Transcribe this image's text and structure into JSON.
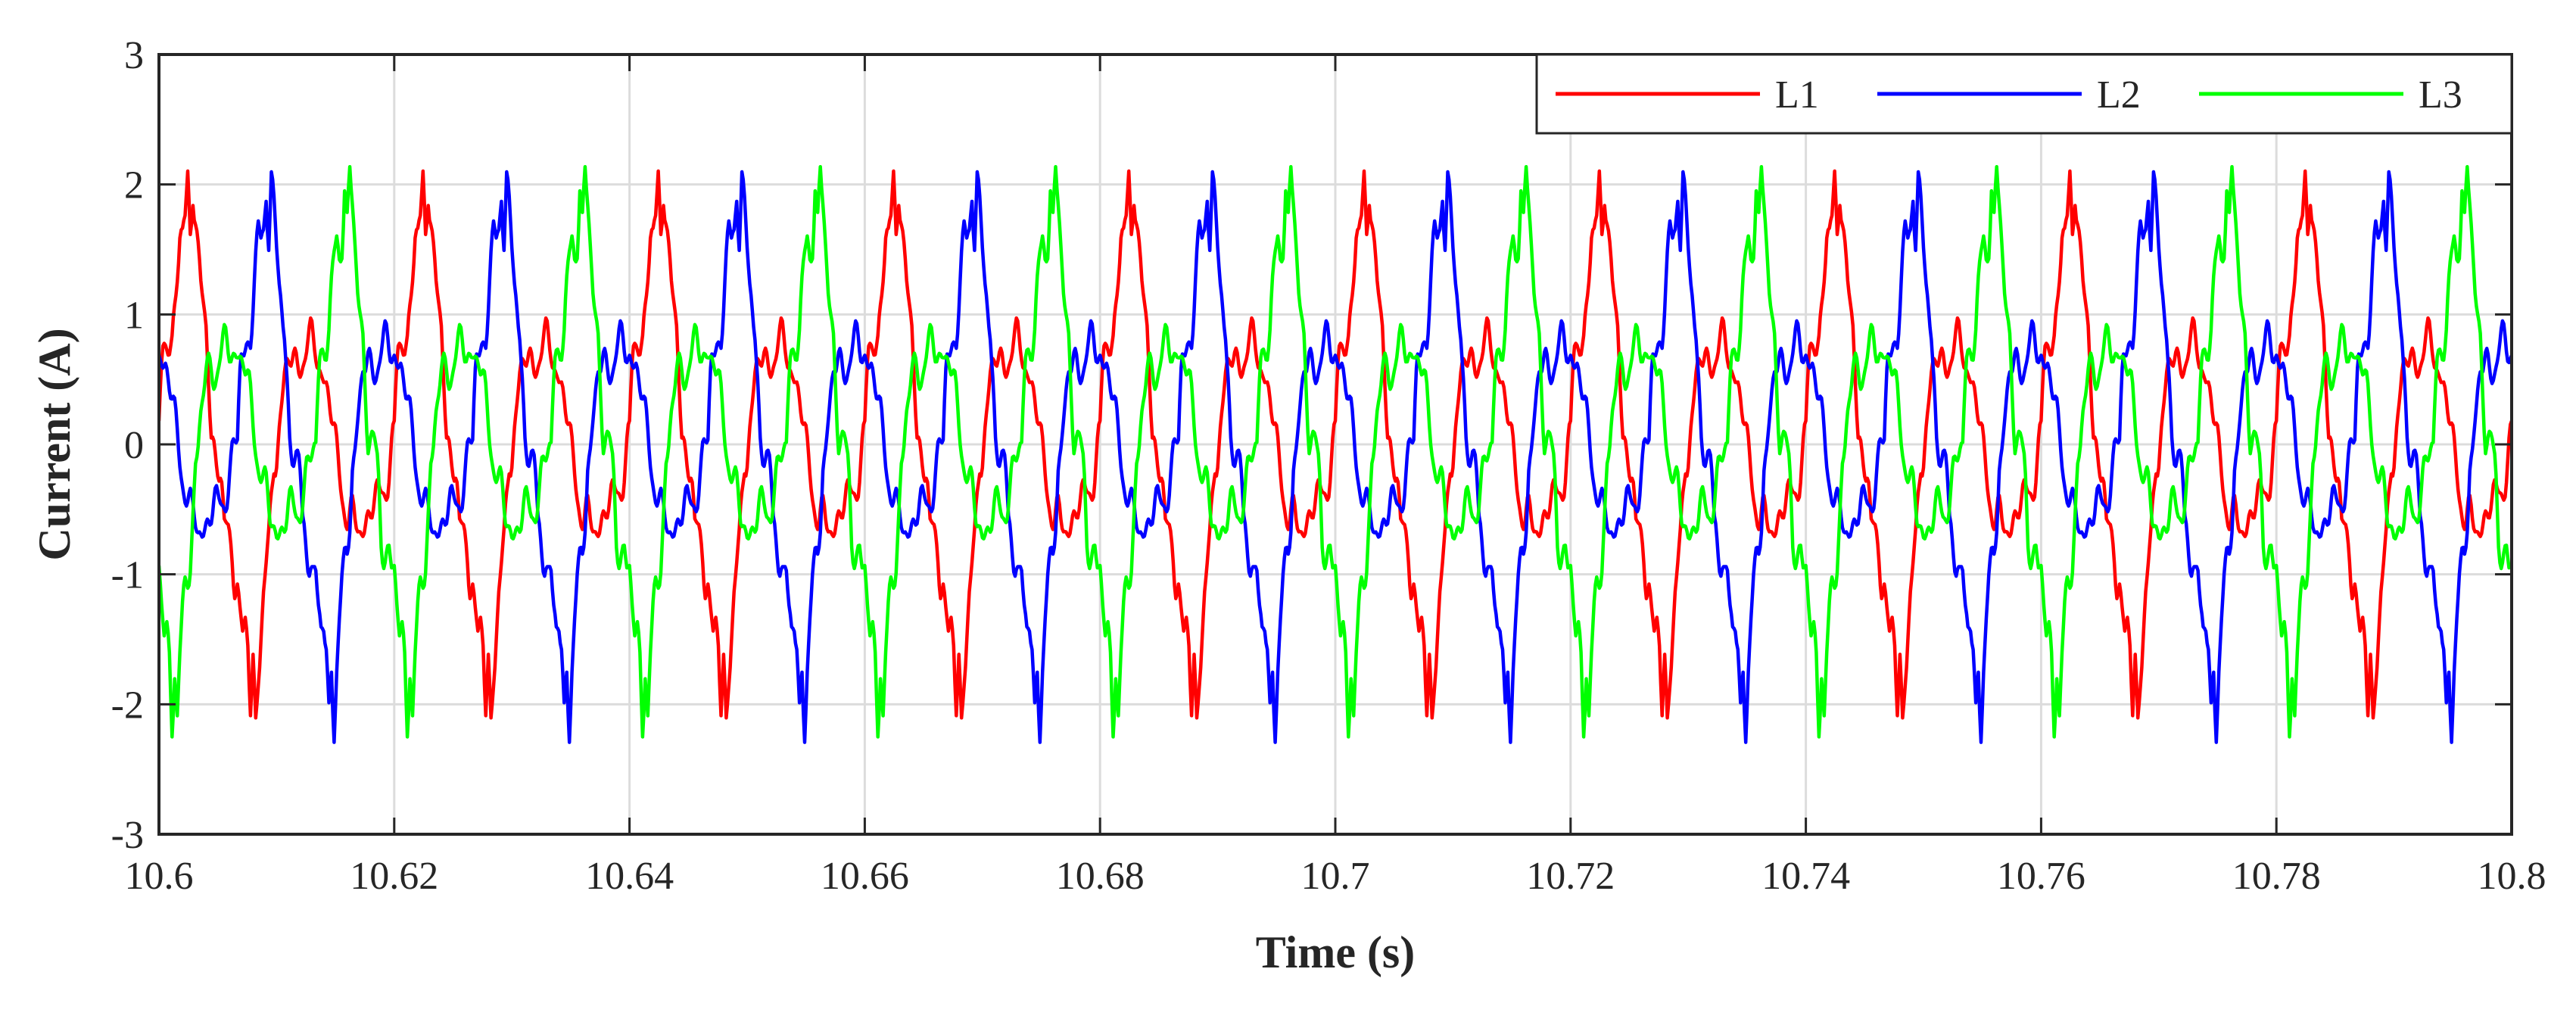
{
  "chart_data": {
    "type": "line",
    "title": "",
    "xlabel": "Time (s)",
    "ylabel": "Current (A)",
    "xlim": [
      10.6,
      10.8
    ],
    "ylim": [
      -3,
      3
    ],
    "grid": true,
    "legend_position": "top-right",
    "x_ticks": [
      10.6,
      10.62,
      10.64,
      10.66,
      10.68,
      10.7,
      10.72,
      10.74,
      10.76,
      10.78,
      10.8
    ],
    "x_tick_labels": [
      "10.6",
      "10.62",
      "10.64",
      "10.66",
      "10.68",
      "10.7",
      "10.72",
      "10.74",
      "10.76",
      "10.78",
      "10.8"
    ],
    "y_ticks": [
      -3,
      -2,
      -1,
      0,
      1,
      2,
      3
    ],
    "y_tick_labels": [
      "-3",
      "-2",
      "-1",
      "0",
      "1",
      "2",
      "3"
    ],
    "signal": {
      "period_s": 0.02,
      "phase_shift_deg": 120,
      "series_phase_deg": [
        0,
        -120,
        120
      ],
      "waveform_points": [
        [
          0,
          0.0
        ],
        [
          2,
          0.3
        ],
        [
          5,
          0.7
        ],
        [
          8,
          0.75
        ],
        [
          12,
          0.78
        ],
        [
          16,
          0.8
        ],
        [
          20,
          0.85
        ],
        [
          24,
          1.1
        ],
        [
          28,
          1.35
        ],
        [
          32,
          1.55
        ],
        [
          36,
          1.5
        ],
        [
          40,
          1.65
        ],
        [
          44,
          2.05
        ],
        [
          48,
          1.7
        ],
        [
          52,
          2.08
        ],
        [
          56,
          1.8
        ],
        [
          60,
          1.45
        ],
        [
          64,
          1.15
        ],
        [
          68,
          1.0
        ],
        [
          72,
          0.85
        ],
        [
          76,
          0.5
        ],
        [
          80,
          0.1
        ],
        [
          90,
          -0.1
        ],
        [
          95,
          -0.25
        ],
        [
          100,
          -0.7
        ],
        [
          104,
          -0.75
        ],
        [
          108,
          -0.78
        ],
        [
          112,
          -0.8
        ],
        [
          116,
          -0.95
        ],
        [
          120,
          -1.0
        ],
        [
          124,
          -1.3
        ],
        [
          128,
          -1.5
        ],
        [
          132,
          -1.45
        ],
        [
          136,
          -1.6
        ],
        [
          140,
          -2.05
        ],
        [
          144,
          -1.65
        ],
        [
          148,
          -2.1
        ],
        [
          152,
          -1.7
        ],
        [
          156,
          -1.4
        ],
        [
          160,
          -1.15
        ],
        [
          164,
          -1.0
        ],
        [
          168,
          -0.85
        ],
        [
          172,
          -0.5
        ],
        [
          176,
          -0.1
        ],
        [
          180,
          0.0
        ],
        [
          184,
          0.2
        ],
        [
          188,
          0.35
        ],
        [
          192,
          0.5
        ],
        [
          196,
          0.55
        ],
        [
          200,
          0.6
        ],
        [
          210,
          0.65
        ],
        [
          220,
          0.7
        ],
        [
          240,
          0.75
        ],
        [
          250,
          0.6
        ],
        [
          260,
          0.3
        ],
        [
          270,
          0.0
        ],
        [
          280,
          -0.3
        ],
        [
          290,
          -0.6
        ],
        [
          300,
          -0.65
        ],
        [
          310,
          -0.6
        ],
        [
          320,
          -0.55
        ],
        [
          330,
          -0.5
        ],
        [
          340,
          -0.35
        ],
        [
          350,
          -0.2
        ],
        [
          360,
          0.0
        ]
      ]
    },
    "series": [
      {
        "name": "L1",
        "color": "#ff0000"
      },
      {
        "name": "L2",
        "color": "#0000ff"
      },
      {
        "name": "L3",
        "color": "#00ff00"
      }
    ]
  }
}
